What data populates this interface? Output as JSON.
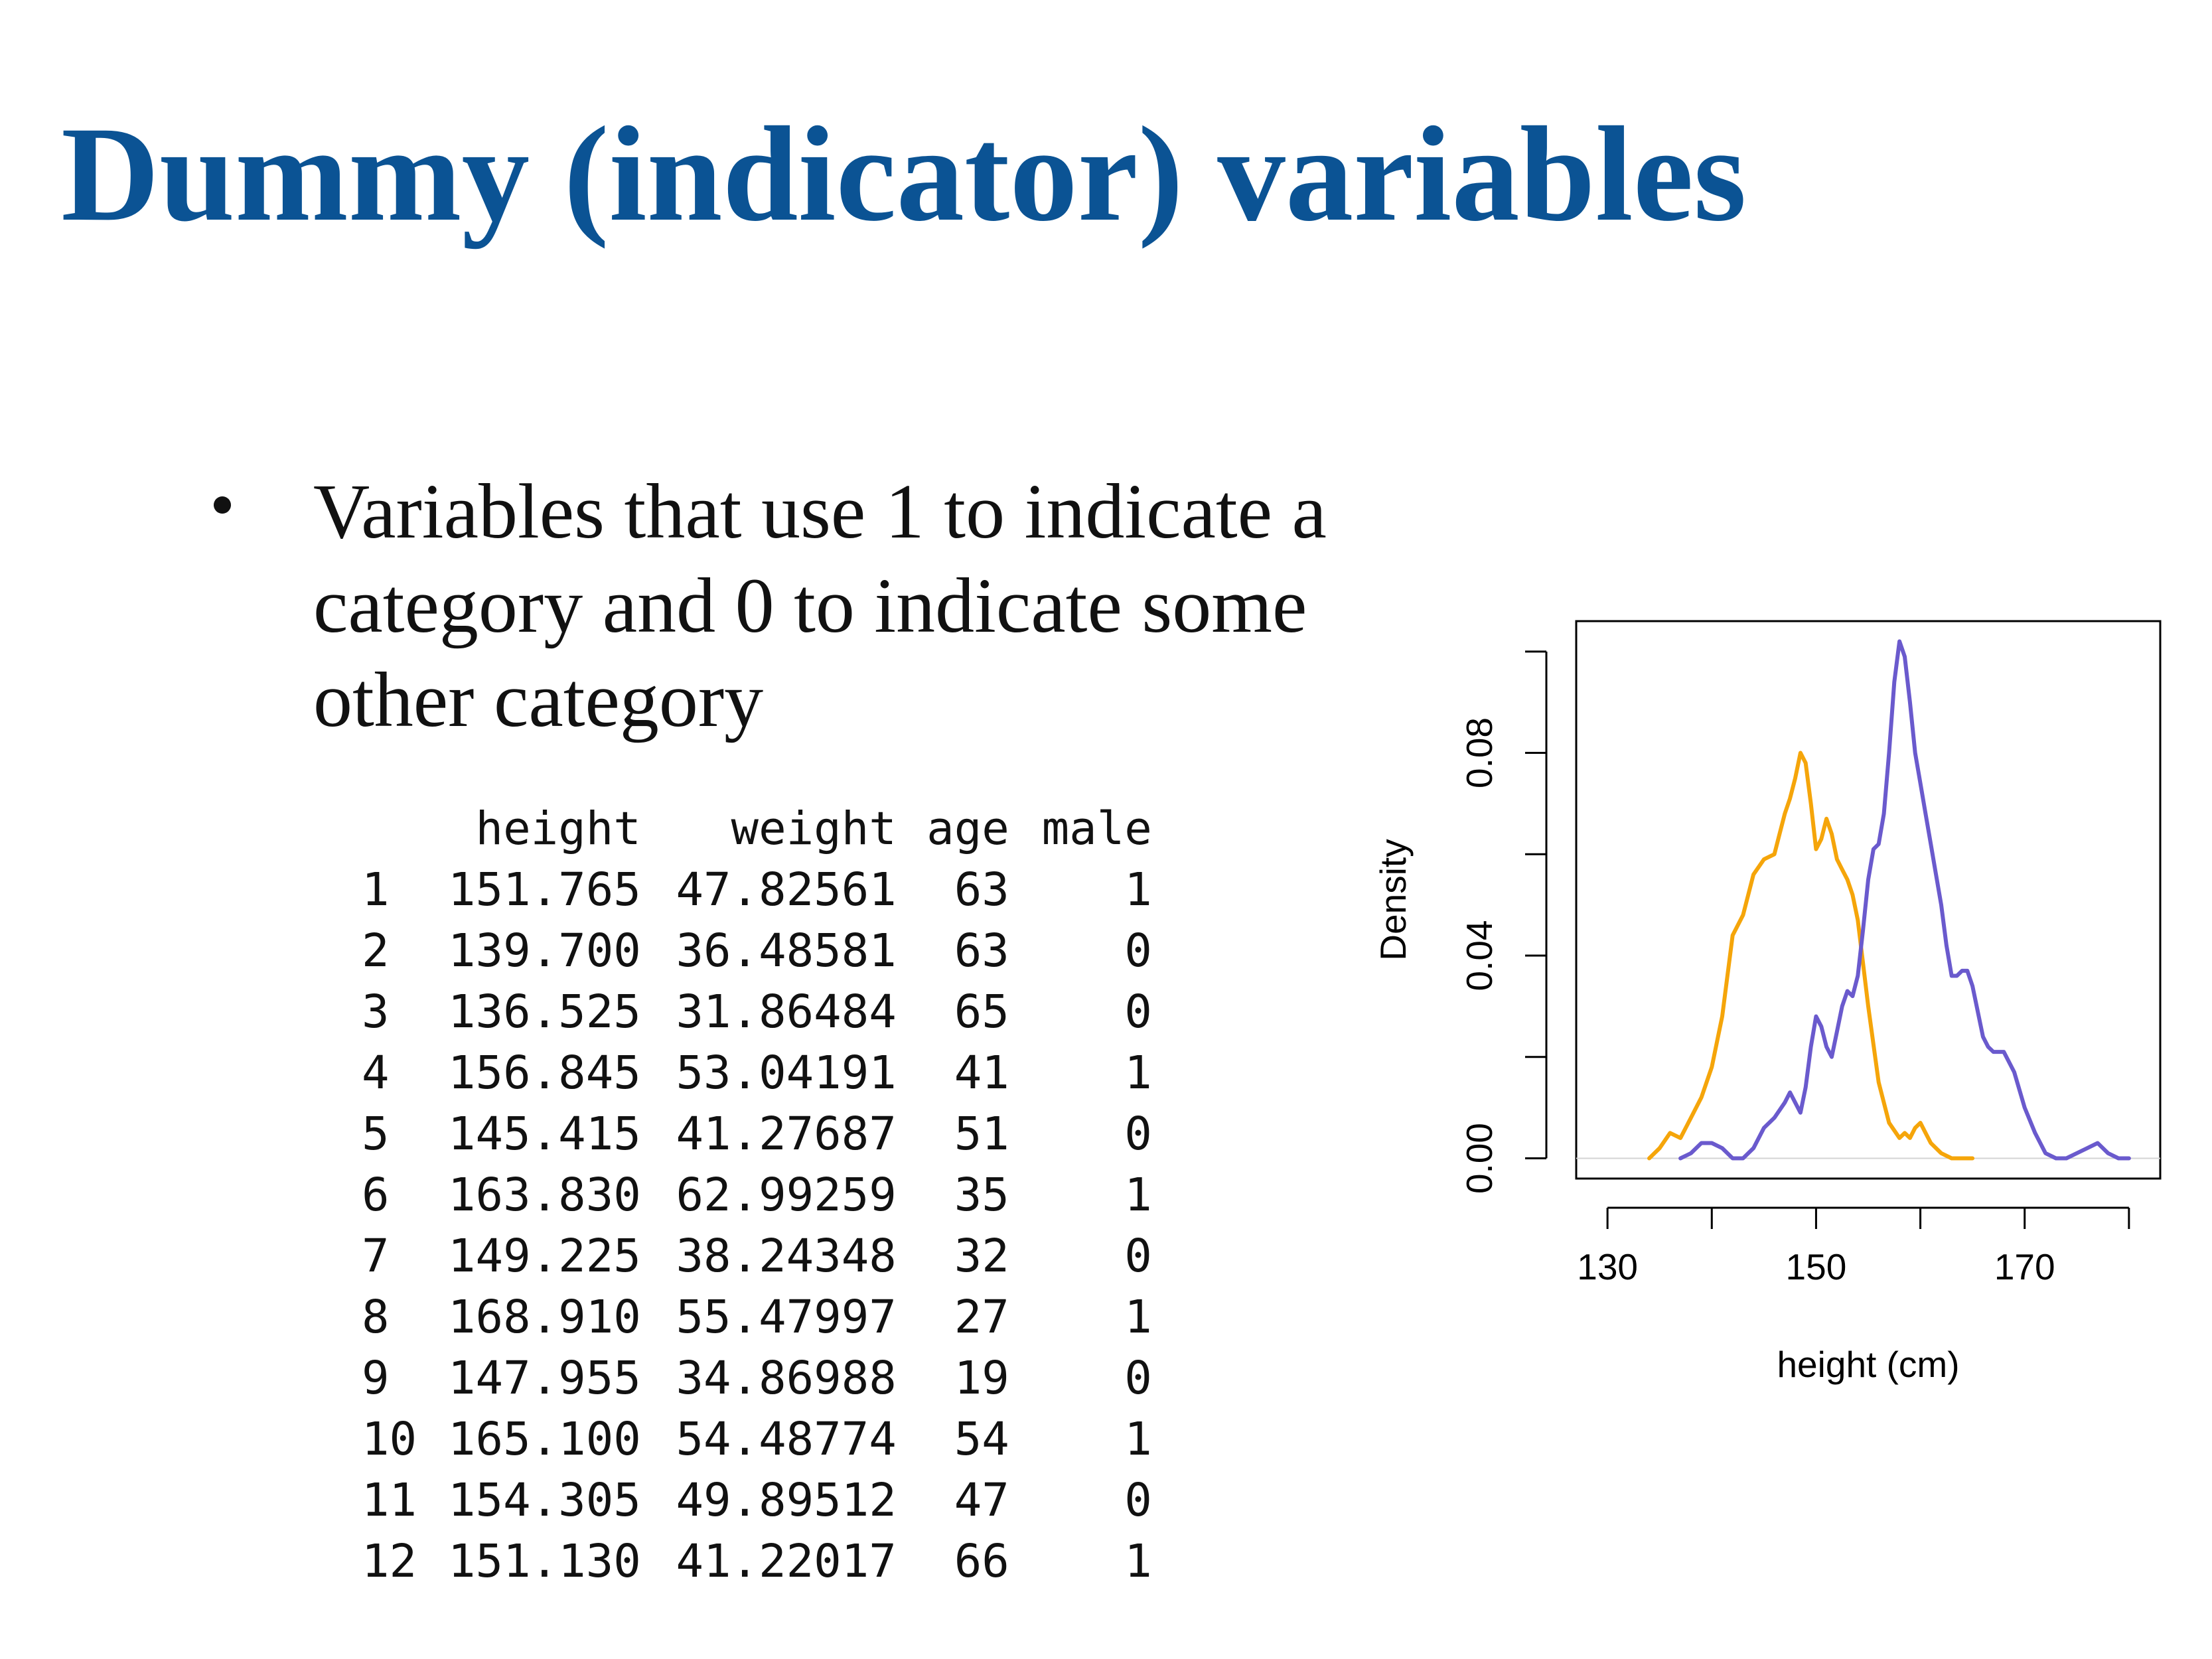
{
  "slide": {
    "title": "Dummy (indicator) variables",
    "bullet": "Variables that use 1 to indicate a category and 0 to indicate some other category"
  },
  "table": {
    "columns": [
      "",
      "height",
      "weight",
      "age",
      "male"
    ],
    "rows": [
      [
        "1",
        "151.765",
        "47.82561",
        "63",
        "1"
      ],
      [
        "2",
        "139.700",
        "36.48581",
        "63",
        "0"
      ],
      [
        "3",
        "136.525",
        "31.86484",
        "65",
        "0"
      ],
      [
        "4",
        "156.845",
        "53.04191",
        "41",
        "1"
      ],
      [
        "5",
        "145.415",
        "41.27687",
        "51",
        "0"
      ],
      [
        "6",
        "163.830",
        "62.99259",
        "35",
        "1"
      ],
      [
        "7",
        "149.225",
        "38.24348",
        "32",
        "0"
      ],
      [
        "8",
        "168.910",
        "55.47997",
        "27",
        "1"
      ],
      [
        "9",
        "147.955",
        "34.86988",
        "19",
        "0"
      ],
      [
        "10",
        "165.100",
        "54.48774",
        "54",
        "1"
      ],
      [
        "11",
        "154.305",
        "49.89512",
        "47",
        "0"
      ],
      [
        "12",
        "151.130",
        "41.22017",
        "66",
        "1"
      ]
    ]
  },
  "colors": {
    "title": "#0b5394",
    "text": "#111111",
    "series_female": "#f5a50a",
    "series_male": "#6a5acd",
    "baseline": "#d3d3d3"
  },
  "chart_data": {
    "type": "line",
    "title": "",
    "xlabel": "height (cm)",
    "ylabel": "Density",
    "xlim": [
      127,
      183
    ],
    "ylim": [
      -0.004,
      0.106
    ],
    "x_ticks": [
      130,
      140,
      150,
      160,
      170,
      180
    ],
    "x_tick_labels": [
      "130",
      "",
      "150",
      "",
      "170",
      ""
    ],
    "y_ticks": [
      0,
      0.02,
      0.04,
      0.06,
      0.08,
      0.1
    ],
    "y_tick_labels": [
      "0.00",
      "",
      "0.04",
      "",
      "0.08",
      ""
    ],
    "grid": false,
    "legend": "none",
    "series": [
      {
        "color": "#f5a50a",
        "x": [
          134,
          135,
          136,
          137,
          138,
          139,
          140,
          141,
          142,
          143,
          144,
          145,
          146,
          146.5,
          147,
          147.5,
          148,
          148.5,
          149,
          149.5,
          150,
          150.5,
          151,
          151.5,
          152,
          152.5,
          153,
          153.5,
          154,
          155,
          156,
          157,
          158,
          158.5,
          159,
          159.5,
          160,
          160.5,
          161,
          162,
          163,
          164,
          165
        ],
        "y": [
          0.0,
          0.002,
          0.005,
          0.004,
          0.008,
          0.012,
          0.018,
          0.028,
          0.044,
          0.048,
          0.056,
          0.059,
          0.06,
          0.064,
          0.068,
          0.071,
          0.075,
          0.08,
          0.078,
          0.07,
          0.061,
          0.063,
          0.067,
          0.064,
          0.059,
          0.057,
          0.055,
          0.052,
          0.047,
          0.03,
          0.015,
          0.007,
          0.004,
          0.005,
          0.004,
          0.006,
          0.007,
          0.005,
          0.003,
          0.001,
          0.0,
          0.0,
          0.0
        ]
      },
      {
        "color": "#6a5acd",
        "x": [
          137,
          138,
          139,
          140,
          141,
          142,
          143,
          144,
          145,
          146,
          147,
          147.5,
          148,
          148.5,
          149,
          149.5,
          150,
          150.5,
          151,
          151.5,
          152,
          152.5,
          153,
          153.5,
          154,
          154.5,
          155,
          155.5,
          156,
          156.5,
          157,
          157.5,
          158,
          158.5,
          159,
          159.5,
          160,
          160.5,
          161,
          161.5,
          162,
          162.5,
          163,
          163.5,
          164,
          164.5,
          165,
          165.5,
          166,
          166.5,
          167,
          167.5,
          168,
          169,
          170,
          171,
          172,
          173,
          174,
          175,
          176,
          177,
          178,
          179,
          180
        ],
        "y": [
          0.0,
          0.001,
          0.003,
          0.003,
          0.002,
          0.0,
          0.0,
          0.002,
          0.006,
          0.008,
          0.011,
          0.013,
          0.011,
          0.009,
          0.014,
          0.022,
          0.028,
          0.026,
          0.022,
          0.02,
          0.025,
          0.03,
          0.033,
          0.032,
          0.036,
          0.045,
          0.055,
          0.061,
          0.062,
          0.068,
          0.08,
          0.094,
          0.102,
          0.099,
          0.09,
          0.08,
          0.074,
          0.068,
          0.062,
          0.056,
          0.05,
          0.042,
          0.036,
          0.036,
          0.037,
          0.037,
          0.034,
          0.029,
          0.024,
          0.022,
          0.021,
          0.021,
          0.021,
          0.017,
          0.01,
          0.005,
          0.001,
          0.0,
          0.0,
          0.001,
          0.002,
          0.003,
          0.001,
          0.0,
          0.0
        ]
      }
    ]
  }
}
